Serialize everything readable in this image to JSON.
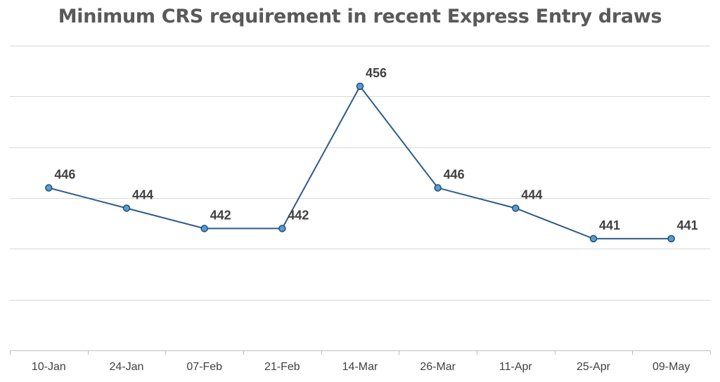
{
  "chart_data": {
    "type": "line",
    "title": "Minimum CRS requirement in recent Express Entry draws",
    "xlabel": "",
    "ylabel": "",
    "categories": [
      "10-Jan",
      "24-Jan",
      "07-Feb",
      "21-Feb",
      "14-Mar",
      "26-Mar",
      "11-Apr",
      "25-Apr",
      "09-May"
    ],
    "series": [
      {
        "values": [
          446,
          444,
          442,
          442,
          456,
          446,
          444,
          441,
          441
        ]
      }
    ],
    "ylim": [
      430,
      460
    ],
    "y_gridline_step": 5,
    "y_tick_labels_shown": false,
    "grid": true,
    "legend": "none",
    "colors": {
      "line": "#2e5c8a",
      "marker_fill": "#5b9bd5",
      "marker_stroke": "#1f4e79",
      "gridline": "#d9d9d9",
      "title": "#595959",
      "text": "#404040"
    }
  }
}
